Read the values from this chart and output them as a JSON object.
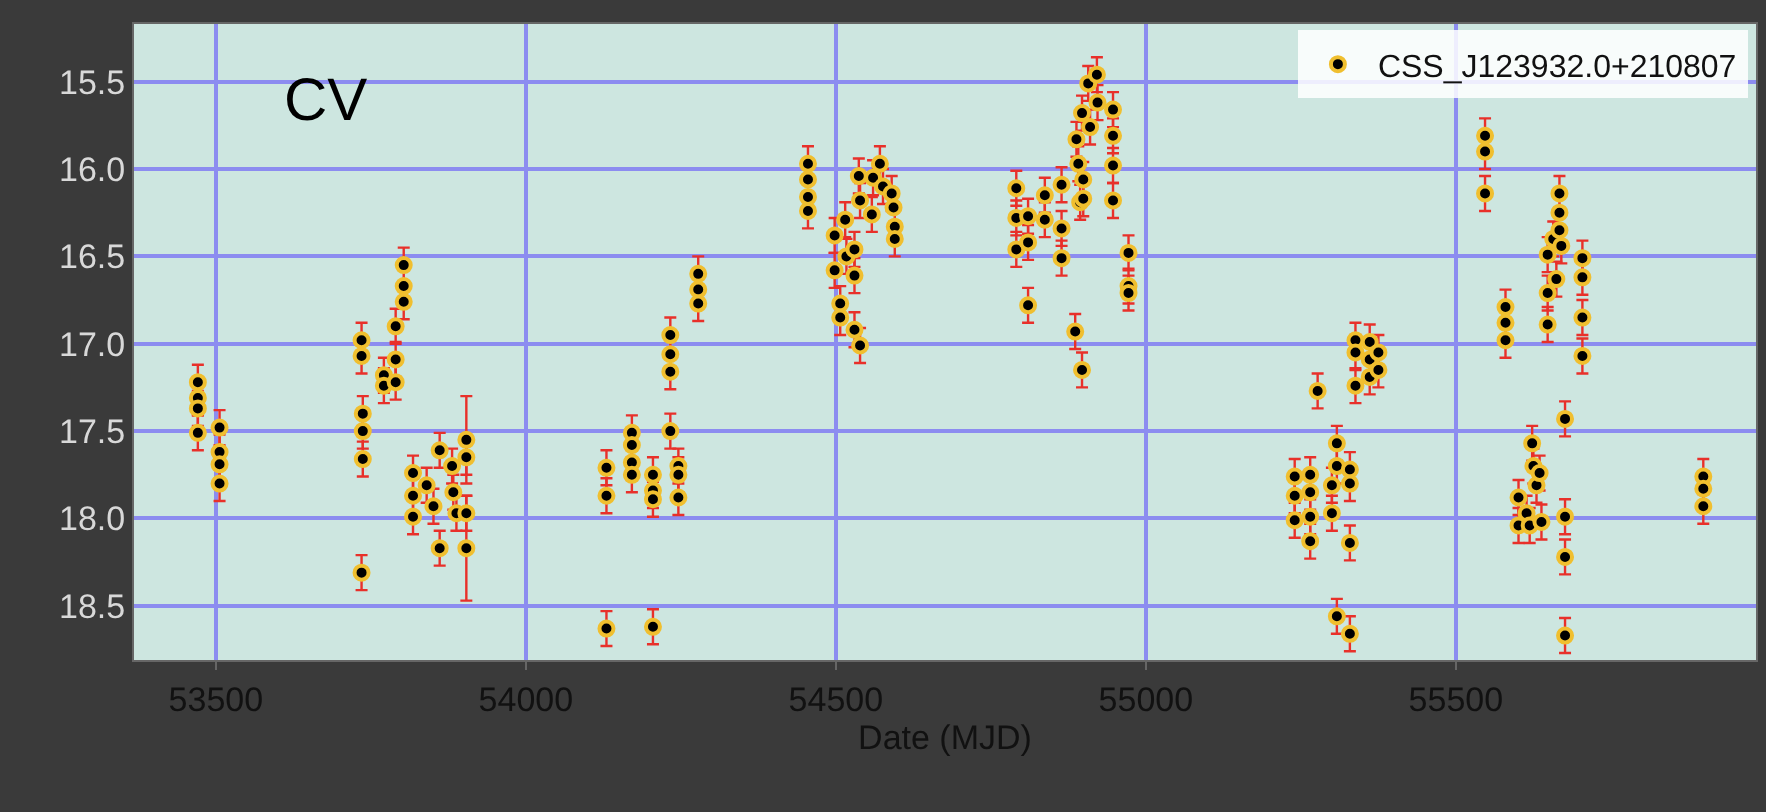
{
  "chart_data": {
    "type": "scatter",
    "xlabel": "Date (MJD)",
    "annotations": [
      "CV"
    ],
    "xlim": [
      53368,
      55984
    ],
    "xticks": [
      53500,
      54000,
      54500,
      55000,
      55500
    ],
    "ylim": [
      18.81,
      15.17
    ],
    "yticks": [
      15.5,
      {
        "value": 16,
        "label": "16.0"
      },
      16.5,
      {
        "value": 17,
        "label": "17.0"
      },
      17.5,
      {
        "value": 18,
        "label": "18.0"
      },
      18.5
    ],
    "grid": true,
    "legend": "top right",
    "marker": "circle",
    "series": [
      {
        "name": "CSS_J123932.0+210807",
        "color": "#f0bf2f",
        "x": [
          53471,
          53471,
          53471,
          53471,
          53506,
          53506,
          53506,
          53506,
          53735,
          53735,
          53735,
          53737,
          53737,
          53737,
          53771,
          53771,
          53790,
          53790,
          53790,
          53803,
          53803,
          53803,
          53818,
          53818,
          53818,
          53840,
          53851,
          53861,
          53861,
          53881,
          53883,
          53888,
          53904,
          53904,
          53904,
          53904,
          54130,
          54130,
          54130,
          54171,
          54171,
          54171,
          54171,
          54205,
          54205,
          54205,
          54205,
          54233,
          54233,
          54233,
          54233,
          54246,
          54246,
          54246,
          54278,
          54278,
          54278,
          54455,
          54455,
          54455,
          54455,
          54498,
          54498,
          54507,
          54507,
          54515,
          54517,
          54530,
          54530,
          54530,
          54539,
          54539,
          54537,
          54558,
          54560,
          54571,
          54576,
          54590,
          54593,
          54595,
          54595,
          54791,
          54791,
          54791,
          54810,
          54810,
          54810,
          54837,
          54837,
          54864,
          54864,
          54864,
          54886,
          54888,
          54891,
          54894,
          54897,
          54897,
          54899,
          54899,
          54907,
          54910,
          54921,
          54922,
          54947,
          54947,
          54947,
          54947,
          54972,
          54972,
          54972,
          55240,
          55240,
          55240,
          55265,
          55265,
          55265,
          55265,
          55277,
          55300,
          55300,
          55308,
          55308,
          55308,
          55329,
          55329,
          55329,
          55329,
          55338,
          55338,
          55338,
          55361,
          55361,
          55361,
          55375,
          55375,
          55547,
          55547,
          55547,
          55580,
          55580,
          55580,
          55601,
          55601,
          55614,
          55619,
          55623,
          55625,
          55630,
          55635,
          55638,
          55648,
          55648,
          55648,
          55657,
          55662,
          55667,
          55667,
          55667,
          55670,
          55676,
          55676,
          55676,
          55676,
          55704,
          55704,
          55704,
          55704,
          55899,
          55899,
          55899
        ],
        "values": [
          17.22,
          17.31,
          17.37,
          17.51,
          17.48,
          17.62,
          17.69,
          17.8,
          16.98,
          17.07,
          18.31,
          17.4,
          17.5,
          17.66,
          17.18,
          17.24,
          16.9,
          17.09,
          17.22,
          16.55,
          16.67,
          16.76,
          17.74,
          17.87,
          17.99,
          17.81,
          17.93,
          17.61,
          18.17,
          17.7,
          17.85,
          17.97,
          17.55,
          17.65,
          17.97,
          18.17,
          17.71,
          17.87,
          18.63,
          17.51,
          17.58,
          17.68,
          17.75,
          17.75,
          17.84,
          17.89,
          18.62,
          16.95,
          17.06,
          17.16,
          17.5,
          17.7,
          17.75,
          17.88,
          16.6,
          16.69,
          16.77,
          15.97,
          16.06,
          16.16,
          16.24,
          16.38,
          16.58,
          16.77,
          16.85,
          16.29,
          16.5,
          16.46,
          16.61,
          16.92,
          17.01,
          16.18,
          16.04,
          16.26,
          16.05,
          15.97,
          16.1,
          16.14,
          16.22,
          16.33,
          16.4,
          16.11,
          16.28,
          16.46,
          16.27,
          16.42,
          16.78,
          16.15,
          16.29,
          16.09,
          16.34,
          16.51,
          16.93,
          15.83,
          15.97,
          16.19,
          15.68,
          17.15,
          16.06,
          16.17,
          15.51,
          15.76,
          15.46,
          15.62,
          15.66,
          15.81,
          15.98,
          16.18,
          16.48,
          16.67,
          16.71,
          17.76,
          17.87,
          18.01,
          17.75,
          17.85,
          17.99,
          18.13,
          17.27,
          17.81,
          17.97,
          17.57,
          17.7,
          18.56,
          17.72,
          17.8,
          18.14,
          18.66,
          16.98,
          17.05,
          17.24,
          16.99,
          17.09,
          17.19,
          17.05,
          17.15,
          15.81,
          15.9,
          16.14,
          16.79,
          16.88,
          16.98,
          17.88,
          18.04,
          17.97,
          18.04,
          17.57,
          17.7,
          17.81,
          17.74,
          18.02,
          16.49,
          16.71,
          16.89,
          16.4,
          16.63,
          16.14,
          16.25,
          16.35,
          16.44,
          17.43,
          17.99,
          18.22,
          18.67,
          16.51,
          16.62,
          16.85,
          17.07,
          17.76,
          17.83,
          17.93
        ],
        "errors": [
          0.1,
          0.1,
          0.1,
          0.1,
          0.1,
          0.1,
          0.1,
          0.1,
          0.1,
          0.1,
          0.1,
          0.1,
          0.1,
          0.1,
          0.1,
          0.1,
          0.1,
          0.1,
          0.1,
          0.1,
          null,
          0.1,
          0.1,
          0.1,
          0.1,
          0.1,
          0.1,
          0.1,
          0.1,
          0.1,
          0.1,
          0.1,
          0.25,
          0.1,
          0.1,
          0.3,
          0.1,
          0.1,
          0.1,
          0.1,
          0.1,
          0.1,
          0.1,
          0.1,
          0.1,
          0.1,
          0.1,
          0.1,
          null,
          0.1,
          0.1,
          0.1,
          0.1,
          0.1,
          0.1,
          null,
          0.1,
          0.1,
          null,
          null,
          0.1,
          0.1,
          0.1,
          0.1,
          0.1,
          0.1,
          0.1,
          0.1,
          0.1,
          0.1,
          0.1,
          0.1,
          0.1,
          0.1,
          0.1,
          0.1,
          0.1,
          0.1,
          null,
          0.1,
          0.1,
          0.1,
          0.1,
          0.1,
          0.1,
          0.1,
          0.1,
          0.1,
          0.1,
          0.1,
          0.1,
          0.1,
          0.1,
          0.1,
          0.1,
          0.1,
          0.1,
          0.1,
          0.1,
          0.1,
          0.1,
          0.1,
          0.1,
          0.1,
          0.1,
          0.1,
          0.1,
          0.1,
          0.1,
          0.1,
          0.1,
          0.1,
          0.1,
          0.1,
          0.1,
          0.1,
          0.1,
          0.1,
          0.1,
          0.1,
          0.1,
          0.1,
          0.1,
          0.1,
          0.1,
          0.1,
          0.1,
          0.1,
          0.1,
          0.1,
          0.1,
          0.1,
          null,
          0.1,
          0.1,
          0.1,
          0.1,
          0.1,
          0.1,
          0.1,
          null,
          0.1,
          0.1,
          0.1,
          0.1,
          0.1,
          0.1,
          0.1,
          0.1,
          0.1,
          0.1,
          0.1,
          0.1,
          0.1,
          0.1,
          0.1,
          0.1,
          null,
          null,
          0.1,
          0.1,
          0.1,
          0.1,
          0.1,
          0.1,
          0.1,
          0.1,
          0.1,
          0.1,
          0.1,
          0.1
        ]
      }
    ]
  }
}
